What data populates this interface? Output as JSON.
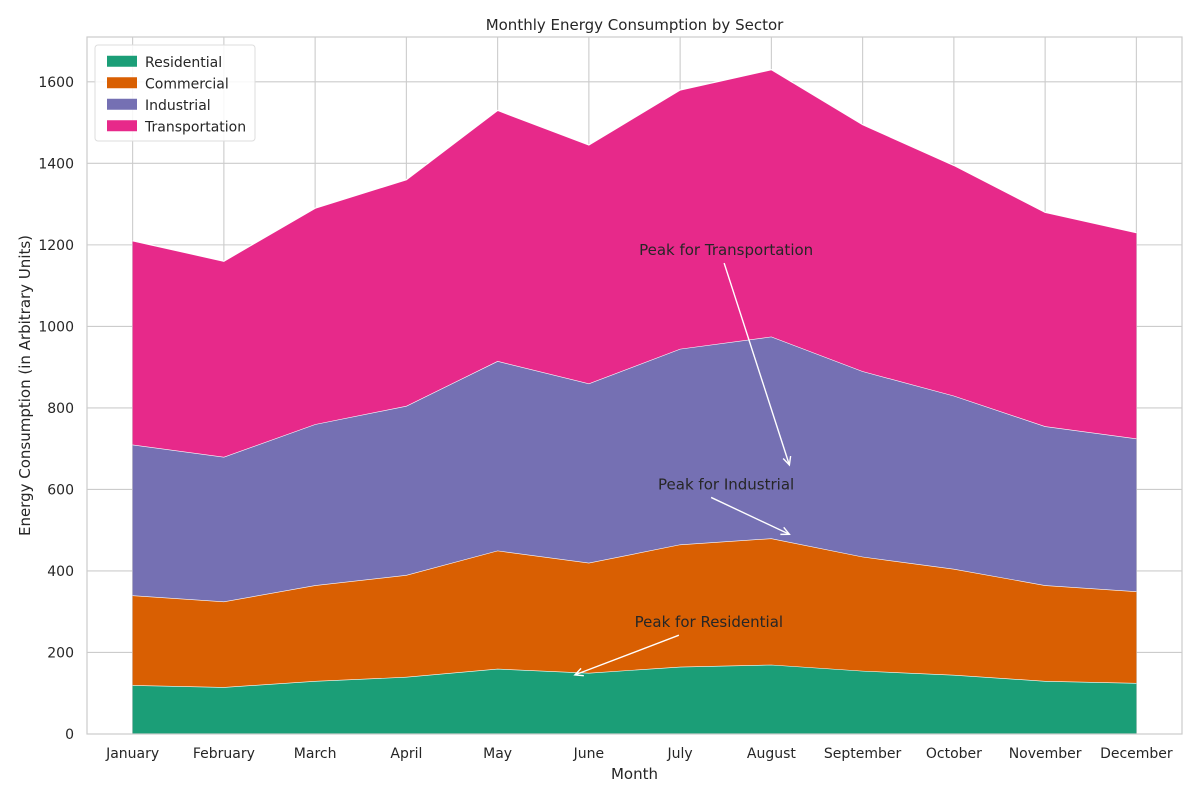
{
  "chart_data": {
    "type": "area",
    "stacked": true,
    "title": "Monthly Energy Consumption by Sector",
    "xlabel": "Month",
    "ylabel": "Energy Consumption (in Arbitrary Units)",
    "ylim": [
      0,
      1710
    ],
    "yticks": [
      0,
      200,
      400,
      600,
      800,
      1000,
      1200,
      1400,
      1600
    ],
    "grid": true,
    "legend_position": "upper-left",
    "categories": [
      "January",
      "February",
      "March",
      "April",
      "May",
      "June",
      "July",
      "August",
      "September",
      "October",
      "November",
      "December"
    ],
    "series": [
      {
        "name": "Residential",
        "color": "#1b9e77",
        "values": [
          120,
          115,
          130,
          140,
          160,
          150,
          165,
          170,
          155,
          145,
          130,
          125
        ]
      },
      {
        "name": "Commercial",
        "color": "#d95f02",
        "values": [
          220,
          210,
          235,
          250,
          290,
          270,
          300,
          310,
          280,
          260,
          235,
          225
        ]
      },
      {
        "name": "Industrial",
        "color": "#7570b3",
        "values": [
          370,
          355,
          395,
          415,
          465,
          440,
          480,
          495,
          455,
          425,
          390,
          375
        ]
      },
      {
        "name": "Transportation",
        "color": "#e7298a",
        "values": [
          500,
          480,
          530,
          555,
          615,
          585,
          635,
          655,
          605,
          565,
          525,
          505
        ]
      }
    ],
    "annotations": [
      {
        "text": "Peak for Residential",
        "text_at": {
          "month": "June",
          "value": 262
        },
        "arrow_to": {
          "month": "June",
          "value": 145
        }
      },
      {
        "text": "Peak for Industrial",
        "text_at": {
          "month": "July",
          "value": 600
        },
        "arrow_to": {
          "month": "August",
          "value": 490
        }
      },
      {
        "text": "Peak for Transportation",
        "text_at": {
          "month": "July",
          "value": 1175
        },
        "arrow_to": {
          "month": "August",
          "value": 660
        }
      }
    ]
  }
}
